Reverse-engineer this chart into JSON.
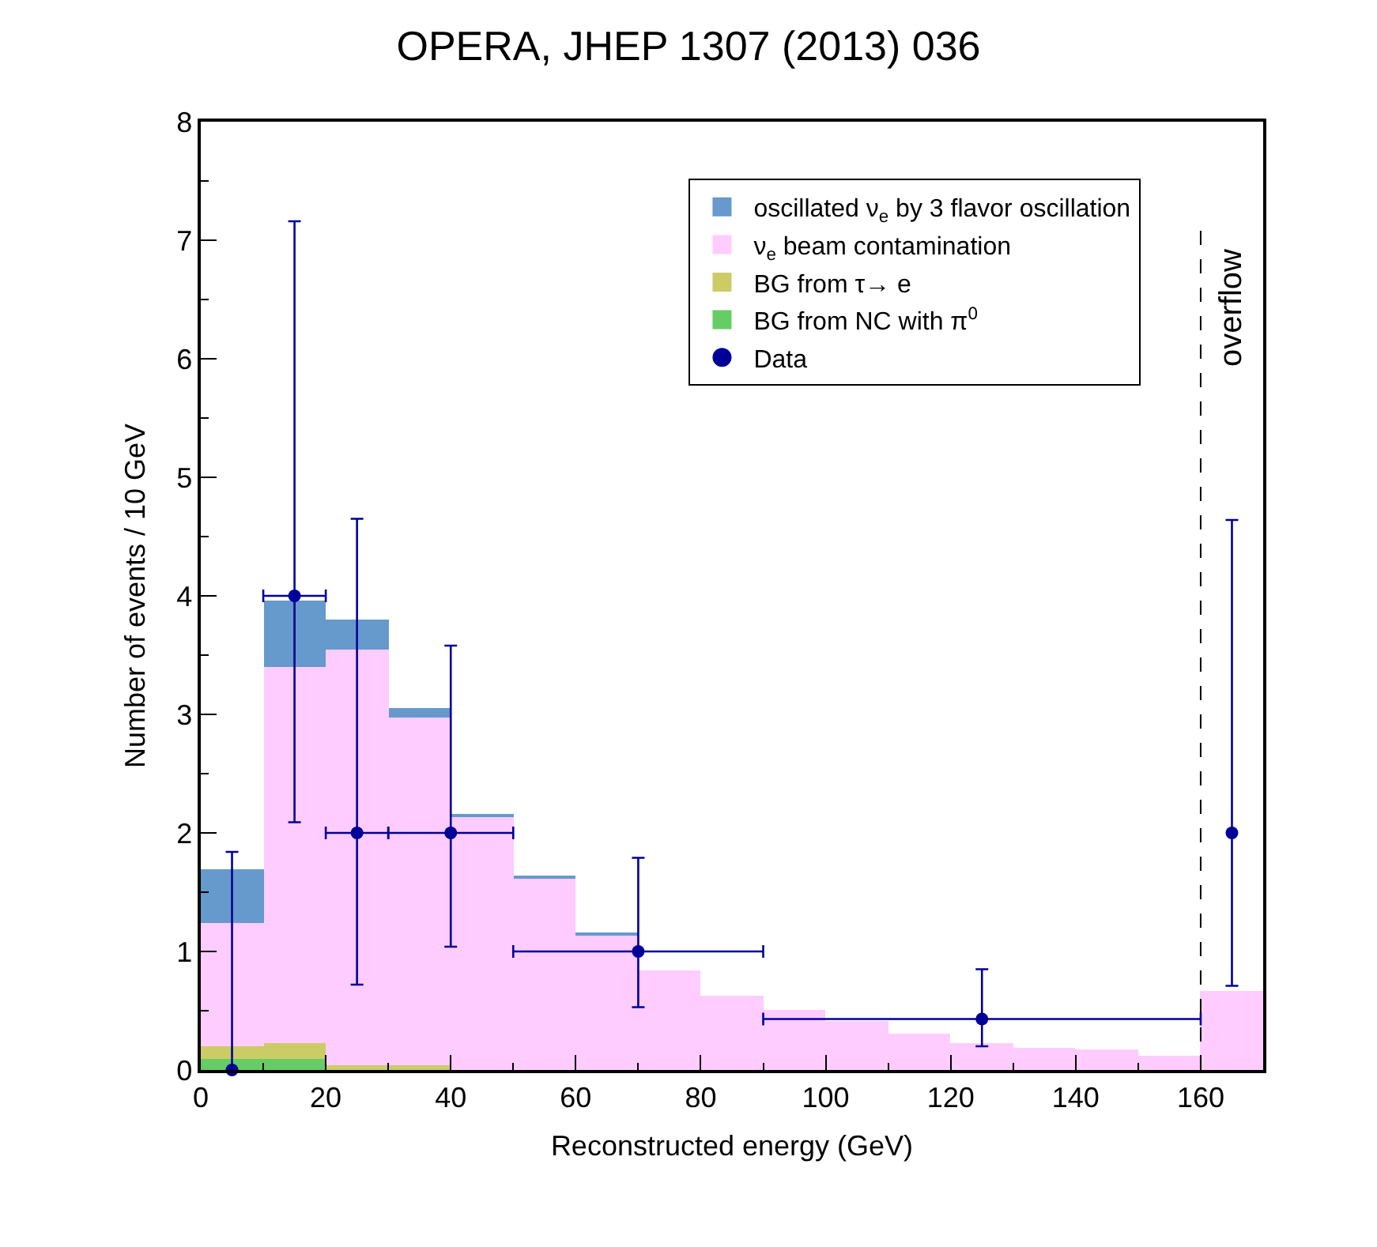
{
  "chart_data": {
    "type": "bar",
    "title": "OPERA, JHEP 1307 (2013) 036",
    "xlabel": "Reconstructed energy (GeV)",
    "ylabel": "Number of events / 10 GeV",
    "x": [
      5,
      15,
      25,
      35,
      45,
      55,
      65,
      75,
      85,
      95,
      105,
      115,
      125,
      135,
      145,
      155,
      165
    ],
    "stacked": true,
    "series": [
      {
        "name": "BG from NC with π$^{0}$",
        "color": "#66cc66",
        "values": [
          0.1,
          0.1,
          0,
          0,
          0,
          0,
          0,
          0,
          0,
          0,
          0,
          0,
          0,
          0,
          0,
          0,
          0
        ]
      },
      {
        "name": "BG from τ→ e",
        "color": "#cccc66",
        "values": [
          0.1,
          0.13,
          0.04,
          0.04,
          0,
          0,
          0,
          0,
          0,
          0,
          0,
          0,
          0,
          0,
          0,
          0,
          0
        ]
      },
      {
        "name": "ν$_{e}$ beam contamination",
        "color": "#ffccff",
        "values": [
          1.04,
          3.17,
          3.51,
          2.93,
          2.14,
          1.62,
          1.14,
          0.84,
          0.63,
          0.51,
          0.41,
          0.31,
          0.23,
          0.19,
          0.17,
          0.12,
          0.67
        ]
      },
      {
        "name": "oscillated ν$_{e}$ by 3 flavor oscillation",
        "color": "#6699cc",
        "values": [
          0.45,
          0.56,
          0.25,
          0.08,
          0.02,
          0.02,
          0.01,
          0,
          0,
          0,
          0,
          0,
          0,
          0,
          0,
          0,
          0
        ]
      },
      {
        "name": "Data",
        "type": "scatter",
        "color": "#000099",
        "marker": "circle",
        "x": [
          5,
          15,
          25,
          40,
          70,
          125,
          165
        ],
        "values": [
          0,
          4,
          2,
          2,
          1,
          0.43,
          2
        ],
        "errors": [
          [
            0,
            1.84
          ],
          [
            2.09,
            7.16
          ],
          [
            0.72,
            4.65
          ],
          [
            1.04,
            3.58
          ],
          [
            0.53,
            1.79
          ],
          [
            0.2,
            0.85
          ],
          [
            0.71,
            4.64
          ]
        ],
        "xerrors": [
          null,
          [
            10,
            20
          ],
          [
            20,
            30
          ],
          [
            30,
            50
          ],
          [
            50,
            90
          ],
          [
            90,
            160
          ],
          null
        ]
      }
    ],
    "xlim": [
      0,
      170
    ],
    "xticks": [
      0,
      20,
      40,
      60,
      80,
      100,
      120,
      140,
      160
    ],
    "ylim": [
      0,
      8
    ],
    "yticks": [
      0,
      1,
      2,
      3,
      4,
      5,
      6,
      7,
      8
    ],
    "ref_lines": [
      {
        "axis": "x",
        "value": 160,
        "label": "overflow",
        "color": "#000000",
        "line_style": "dashed"
      }
    ],
    "legend": "top right"
  }
}
